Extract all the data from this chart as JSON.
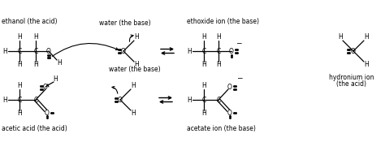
{
  "bg_color": "#ffffff",
  "text_color": "#000000",
  "labels": {
    "ethanol": "ethanol (the acid)",
    "acetic_acid": "acetic acid (the acid)",
    "ethoxide": "ethoxide ion (the base)",
    "acetate": "acetate ion (the base)",
    "hydronium_line1": "hydronium ion",
    "hydronium_line2": "(the acid)",
    "water_top": "water (the base)"
  },
  "font_size": 5.5
}
